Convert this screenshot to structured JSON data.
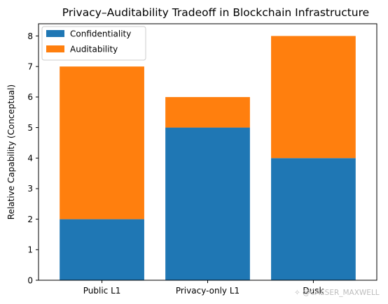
{
  "chart_data": {
    "type": "bar",
    "stacked": true,
    "title": "Privacy–Auditability Tradeoff in Blockchain Infrastructure",
    "xlabel": "",
    "ylabel": "Relative Capability (Conceptual)",
    "categories": [
      "Public L1",
      "Privacy-only L1",
      "Dusk"
    ],
    "series": [
      {
        "name": "Confidentiality",
        "values": [
          2,
          5,
          4
        ],
        "color": "#1f77b4"
      },
      {
        "name": "Auditability",
        "values": [
          5,
          1,
          4
        ],
        "color": "#ff7f0e"
      }
    ],
    "ylim": [
      0,
      8.4
    ],
    "yticks": [
      0,
      1,
      2,
      3,
      4,
      5,
      6,
      7,
      8
    ],
    "grid": false,
    "legend_position": "top-left"
  },
  "watermark": {
    "icon": "sparkle-icon",
    "text": "@CAESER_MAXWELL"
  }
}
